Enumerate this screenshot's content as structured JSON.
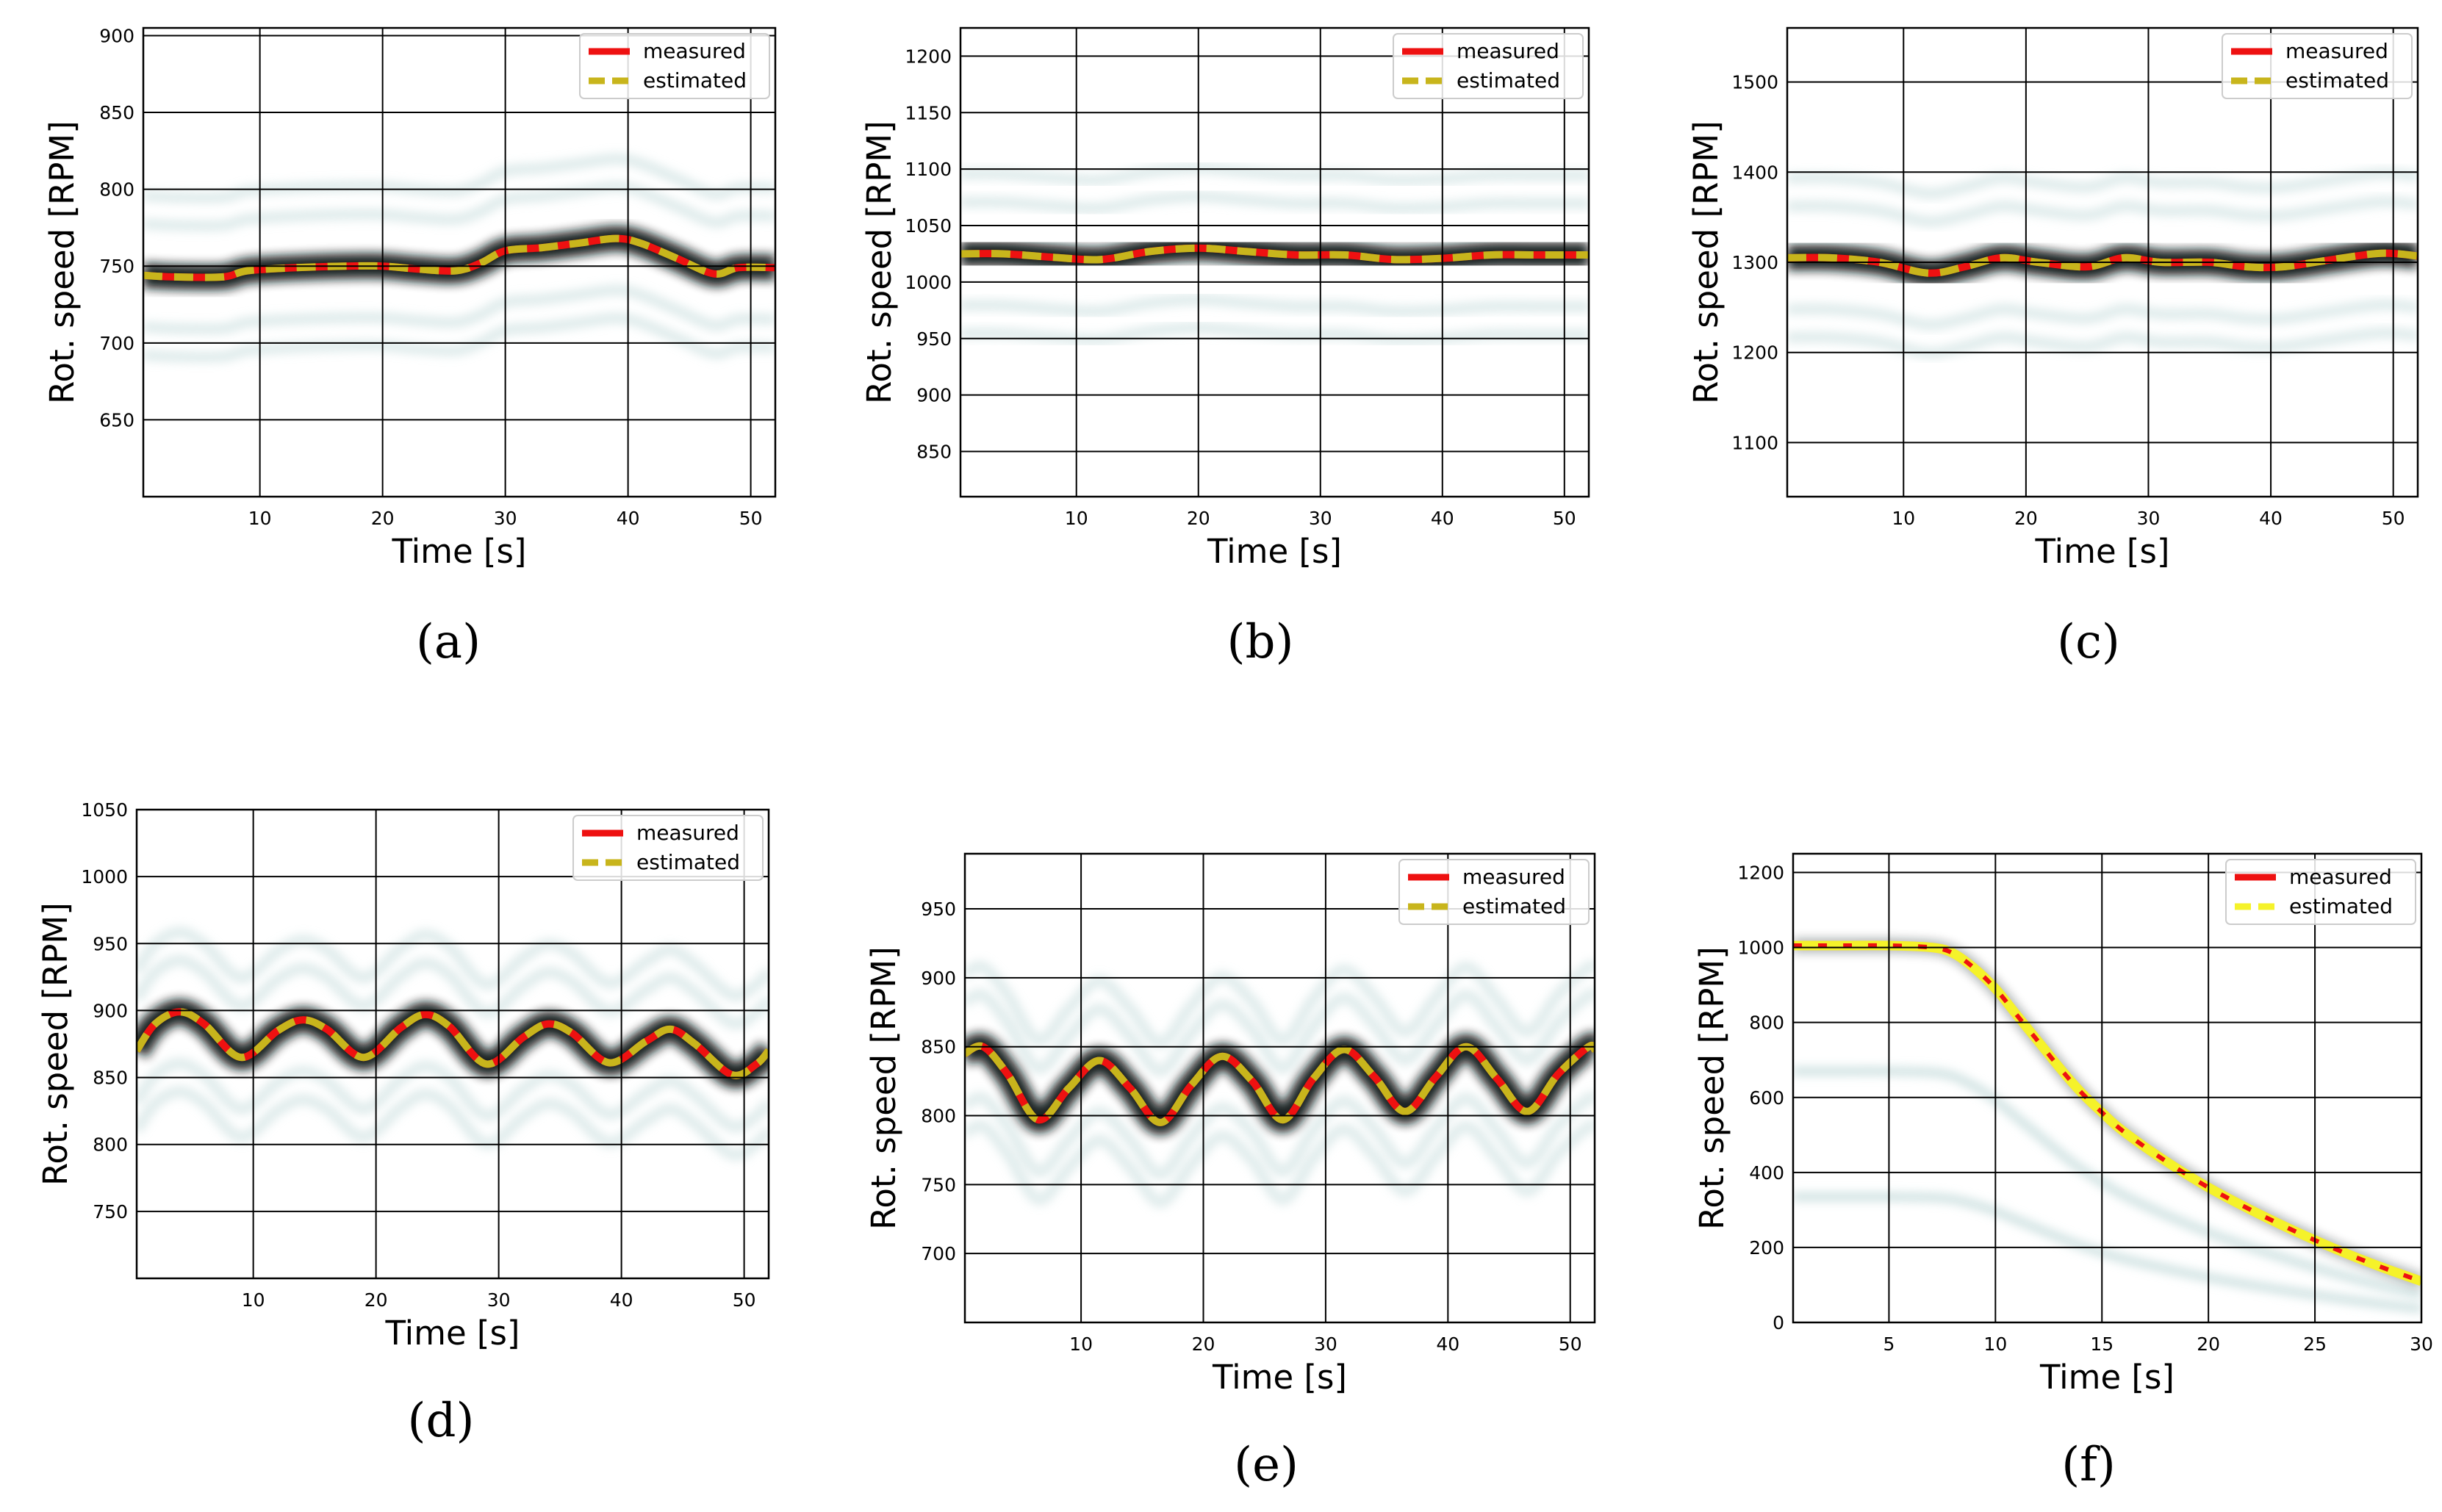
{
  "colors": {
    "measured": "#ee1111",
    "estimated": "#c8b51c",
    "estimated_bright": "#f5f22a",
    "grid": "#000000",
    "band": "#0b1418",
    "ghost": "#c9dede"
  },
  "chart_data": [
    {
      "type": "line",
      "panel": "a",
      "caption": "(a)",
      "xlabel": "Time [s]",
      "ylabel": "Rot. speed [RPM]",
      "xlim": [
        0.5,
        52
      ],
      "ylim": [
        600,
        905
      ],
      "xticks": [
        10,
        20,
        30,
        40,
        50
      ],
      "yticks": [
        650,
        700,
        750,
        800,
        850,
        900
      ],
      "x": [
        0.5,
        3,
        7,
        9,
        13,
        17,
        20,
        23,
        26,
        28,
        30,
        33,
        36,
        39,
        41,
        44,
        47,
        49,
        52
      ],
      "series": [
        {
          "name": "measured",
          "values": [
            744,
            743,
            743,
            747,
            749,
            750,
            750,
            748,
            747,
            752,
            760,
            762,
            765,
            768,
            765,
            755,
            745,
            749,
            749
          ]
        },
        {
          "name": "estimated",
          "values": [
            744,
            743,
            743,
            747,
            749,
            750,
            750,
            748,
            747,
            752,
            760,
            762,
            765,
            768,
            765,
            755,
            745,
            749,
            749
          ]
        }
      ],
      "legend": [
        "measured",
        "estimated"
      ],
      "legend_position": "top-right"
    },
    {
      "type": "line",
      "panel": "b",
      "caption": "(b)",
      "xlabel": "Time [s]",
      "ylabel": "Rot. speed [RPM]",
      "xlim": [
        0.5,
        52
      ],
      "ylim": [
        810,
        1225
      ],
      "xticks": [
        10,
        20,
        30,
        40,
        50
      ],
      "yticks": [
        850,
        900,
        950,
        1000,
        1050,
        1100,
        1150,
        1200
      ],
      "x": [
        0.5,
        4,
        8,
        12,
        16,
        20,
        24,
        28,
        32,
        36,
        40,
        44,
        48,
        52
      ],
      "series": [
        {
          "name": "measured",
          "values": [
            1025,
            1025,
            1022,
            1020,
            1027,
            1030,
            1027,
            1024,
            1024,
            1020,
            1021,
            1024,
            1024,
            1024
          ]
        },
        {
          "name": "estimated",
          "values": [
            1025,
            1025,
            1022,
            1020,
            1027,
            1030,
            1027,
            1024,
            1024,
            1020,
            1021,
            1024,
            1024,
            1024
          ]
        }
      ],
      "legend": [
        "measured",
        "estimated"
      ],
      "legend_position": "top-right"
    },
    {
      "type": "line",
      "panel": "c",
      "caption": "(c)",
      "xlabel": "Time [s]",
      "ylabel": "Rot. speed [RPM]",
      "xlim": [
        0.5,
        52
      ],
      "ylim": [
        1040,
        1560
      ],
      "xticks": [
        10,
        20,
        30,
        40,
        50
      ],
      "yticks": [
        1100,
        1200,
        1300,
        1400,
        1500
      ],
      "x": [
        0.5,
        4,
        8,
        12,
        15,
        18,
        21,
        25,
        28,
        31,
        35,
        38,
        41,
        45,
        49,
        52
      ],
      "series": [
        {
          "name": "measured",
          "values": [
            1305,
            1305,
            1300,
            1288,
            1295,
            1305,
            1300,
            1295,
            1305,
            1300,
            1300,
            1295,
            1295,
            1303,
            1310,
            1307
          ]
        },
        {
          "name": "estimated",
          "values": [
            1305,
            1305,
            1300,
            1288,
            1295,
            1305,
            1300,
            1295,
            1305,
            1300,
            1300,
            1295,
            1295,
            1303,
            1310,
            1307
          ]
        }
      ],
      "legend": [
        "measured",
        "estimated"
      ],
      "legend_position": "top-right"
    },
    {
      "type": "line",
      "panel": "d",
      "caption": "(d)",
      "xlabel": "Time [s]",
      "ylabel": "Rot. speed [RPM]",
      "xlim": [
        0.5,
        52
      ],
      "ylim": [
        700,
        1050
      ],
      "xticks": [
        10,
        20,
        30,
        40,
        50
      ],
      "yticks": [
        750,
        800,
        850,
        900,
        950,
        1000,
        1050
      ],
      "x": [
        0.5,
        2,
        4,
        6,
        9,
        12,
        14,
        16,
        19,
        22,
        24,
        26,
        29,
        32,
        34,
        36,
        39,
        42,
        44,
        46,
        49,
        51,
        52
      ],
      "series": [
        {
          "name": "measured",
          "values": [
            870,
            890,
            899,
            890,
            865,
            885,
            893,
            886,
            865,
            887,
            897,
            888,
            860,
            880,
            890,
            883,
            861,
            877,
            886,
            875,
            852,
            860,
            870
          ]
        },
        {
          "name": "estimated",
          "values": [
            870,
            890,
            899,
            890,
            865,
            885,
            893,
            886,
            865,
            887,
            897,
            888,
            860,
            880,
            890,
            883,
            861,
            877,
            886,
            875,
            852,
            860,
            870
          ]
        }
      ],
      "legend": [
        "measured",
        "estimated"
      ],
      "legend_position": "top-right"
    },
    {
      "type": "line",
      "panel": "e",
      "caption": "(e)",
      "xlabel": "Time [s]",
      "ylabel": "Rot. speed [RPM]",
      "xlim": [
        0.5,
        52
      ],
      "ylim": [
        650,
        990
      ],
      "xticks": [
        10,
        20,
        30,
        40,
        50
      ],
      "yticks": [
        700,
        750,
        800,
        850,
        900,
        950
      ],
      "x": [
        0.5,
        2,
        4,
        6.5,
        9,
        11.5,
        14,
        16.5,
        19,
        21.5,
        24,
        26.5,
        29,
        31.5,
        34,
        36.5,
        39,
        41.5,
        44,
        46.5,
        49,
        51.5,
        52
      ],
      "series": [
        {
          "name": "measured",
          "values": [
            845,
            850,
            830,
            797,
            820,
            840,
            820,
            795,
            822,
            843,
            825,
            797,
            827,
            848,
            828,
            803,
            828,
            850,
            827,
            803,
            830,
            850,
            848
          ]
        },
        {
          "name": "estimated",
          "values": [
            845,
            850,
            830,
            797,
            820,
            840,
            820,
            795,
            822,
            843,
            825,
            797,
            827,
            848,
            828,
            803,
            828,
            850,
            827,
            803,
            830,
            850,
            848
          ]
        }
      ],
      "legend": [
        "measured",
        "estimated"
      ],
      "legend_position": "top-right"
    },
    {
      "type": "line",
      "panel": "f",
      "caption": "(f)",
      "xlabel": "Time [s]",
      "ylabel": "Rot. speed [RPM]",
      "xlim": [
        0.5,
        30
      ],
      "ylim": [
        0,
        1250
      ],
      "xticks": [
        5,
        10,
        15,
        20,
        25,
        30
      ],
      "yticks": [
        0,
        200,
        400,
        600,
        800,
        1000,
        1200
      ],
      "x": [
        0.5,
        3,
        5,
        7,
        8,
        9,
        10,
        11,
        12,
        13,
        14,
        15,
        16,
        18,
        20,
        22,
        24,
        26,
        28,
        30
      ],
      "series": [
        {
          "name": "measured",
          "values": [
            1005,
            1005,
            1005,
            1000,
            985,
            945,
            890,
            820,
            750,
            680,
            615,
            560,
            510,
            430,
            360,
            300,
            245,
            195,
            150,
            110
          ]
        },
        {
          "name": "estimated",
          "values": [
            1005,
            1005,
            1005,
            1000,
            985,
            945,
            890,
            820,
            750,
            680,
            615,
            560,
            510,
            430,
            360,
            300,
            245,
            195,
            150,
            110
          ]
        }
      ],
      "legend": [
        "measured",
        "estimated"
      ],
      "legend_position": "top-right"
    }
  ]
}
